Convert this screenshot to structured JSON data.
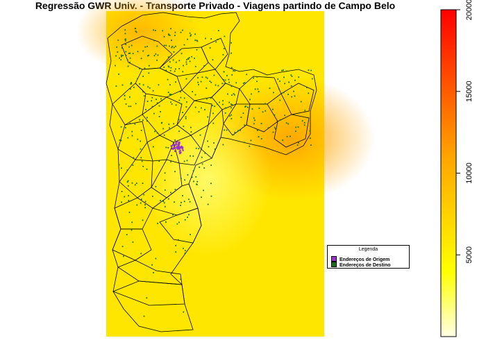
{
  "title": "Regressão GWR Univ. - Transporte Privado - Viagens partindo de Campo Belo",
  "legend": {
    "title": "Legenda",
    "items": [
      {
        "label": "Endereços de Origem",
        "color": "#9933cc"
      },
      {
        "label": "Endereços de Destino",
        "color": "#1a6e1a"
      }
    ]
  },
  "colorbar": {
    "range": [
      0,
      20000
    ],
    "tick_labels": [
      "5000",
      "10000",
      "15000",
      "20000"
    ],
    "tick_values": [
      5000,
      10000,
      15000,
      20000
    ],
    "colors": [
      "#ffffe6",
      "#ffff00",
      "#ffa500",
      "#ff0000"
    ]
  },
  "map": {
    "background_color": "#ffff00",
    "hotspot_color": "#ffa500",
    "boundary_color": "#000000",
    "origin_color": "#9933cc",
    "destination_color": "#1a6e1a"
  }
}
